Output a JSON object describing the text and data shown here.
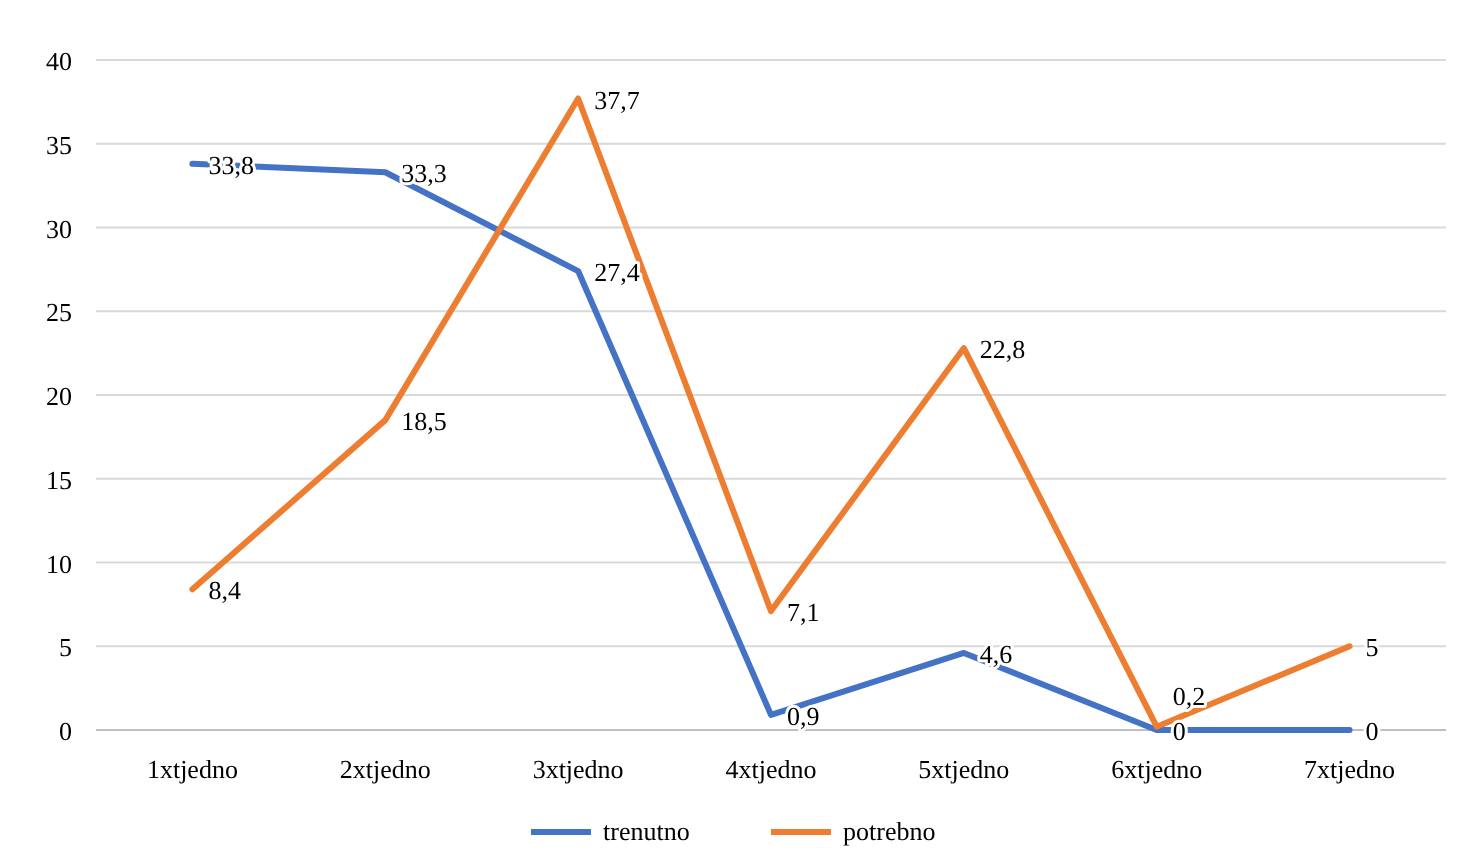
{
  "chart_data": {
    "type": "line",
    "categories": [
      "1xtjedno",
      "2xtjedno",
      "3xtjedno",
      "4xtjedno",
      "5xtjedno",
      "6xtjedno",
      "7xtjedno"
    ],
    "series": [
      {
        "name": "trenutno",
        "color": "#4472c4",
        "values": [
          33.8,
          33.3,
          27.4,
          0.9,
          4.6,
          0,
          0
        ],
        "value_labels": [
          "33,8",
          "33,3",
          "27,4",
          "0,9",
          "4,6",
          "0",
          "0"
        ]
      },
      {
        "name": "potrebno",
        "color": "#ed7d31",
        "values": [
          8.4,
          18.5,
          37.7,
          7.1,
          22.8,
          0.2,
          5
        ],
        "value_labels": [
          "8,4",
          "18,5",
          "37,7",
          "7,1",
          "22,8",
          "0,2",
          "5"
        ]
      }
    ],
    "ylim": [
      0,
      40
    ],
    "yticks": [
      0,
      5,
      10,
      15,
      20,
      25,
      30,
      35,
      40
    ],
    "grid": "y",
    "legend": "bottom",
    "marker": "none",
    "line_style": "solid"
  }
}
